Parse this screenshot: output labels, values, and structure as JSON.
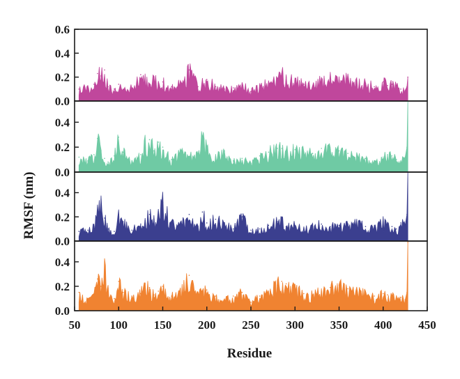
{
  "chart_data": {
    "type": "line",
    "style": "stacked-panels-filled-spikes",
    "xlabel": "Residue",
    "ylabel": "RMSF (nm)",
    "xlim": [
      50,
      450
    ],
    "x_ticks": [
      "50",
      "100",
      "150",
      "200",
      "250",
      "300",
      "350",
      "400",
      "450"
    ],
    "x_tick_values": [
      50,
      100,
      150,
      200,
      250,
      300,
      350,
      400,
      450
    ],
    "x_range_of_data": [
      55,
      428
    ],
    "grid": false,
    "legend": "none",
    "panels": [
      {
        "color": "#c0479c",
        "ylim": [
          0,
          0.6
        ],
        "y_ticks": [
          "0.0",
          "0.2",
          "0.4",
          "0.6"
        ],
        "y_tick_values": [
          0,
          0.2,
          0.4,
          0.6
        ],
        "x": [
          55,
          65,
          72,
          76,
          80,
          84,
          88,
          95,
          100,
          105,
          115,
          125,
          130,
          135,
          140,
          145,
          150,
          160,
          170,
          180,
          190,
          200,
          210,
          220,
          230,
          240,
          250,
          260,
          270,
          280,
          285,
          290,
          300,
          310,
          320,
          330,
          340,
          350,
          360,
          370,
          380,
          390,
          400,
          405,
          410,
          415,
          420,
          425,
          427,
          428
        ],
        "values": [
          0.1,
          0.12,
          0.14,
          0.23,
          0.21,
          0.26,
          0.12,
          0.1,
          0.14,
          0.09,
          0.11,
          0.22,
          0.18,
          0.13,
          0.2,
          0.15,
          0.16,
          0.12,
          0.15,
          0.26,
          0.12,
          0.18,
          0.12,
          0.1,
          0.11,
          0.14,
          0.08,
          0.13,
          0.15,
          0.18,
          0.23,
          0.2,
          0.17,
          0.14,
          0.12,
          0.18,
          0.19,
          0.17,
          0.2,
          0.16,
          0.15,
          0.12,
          0.16,
          0.13,
          0.14,
          0.12,
          0.1,
          0.09,
          0.12,
          0.2
        ]
      },
      {
        "color": "#6fcaa4",
        "ylim": [
          0,
          0.57
        ],
        "y_ticks": [
          "0.0",
          "0.2",
          "0.4"
        ],
        "y_tick_values": [
          0,
          0.2,
          0.4
        ],
        "x": [
          55,
          65,
          72,
          76,
          80,
          84,
          88,
          95,
          100,
          105,
          115,
          125,
          130,
          135,
          140,
          145,
          150,
          160,
          170,
          180,
          190,
          195,
          200,
          210,
          220,
          230,
          240,
          250,
          260,
          270,
          280,
          285,
          290,
          300,
          310,
          320,
          330,
          340,
          350,
          360,
          370,
          380,
          390,
          400,
          405,
          410,
          415,
          420,
          425,
          427,
          428
        ],
        "values": [
          0.12,
          0.09,
          0.14,
          0.27,
          0.17,
          0.11,
          0.08,
          0.13,
          0.28,
          0.16,
          0.08,
          0.14,
          0.25,
          0.26,
          0.17,
          0.24,
          0.2,
          0.1,
          0.16,
          0.12,
          0.15,
          0.29,
          0.18,
          0.12,
          0.17,
          0.09,
          0.11,
          0.07,
          0.13,
          0.16,
          0.19,
          0.19,
          0.17,
          0.18,
          0.16,
          0.15,
          0.19,
          0.18,
          0.17,
          0.15,
          0.13,
          0.11,
          0.09,
          0.12,
          0.14,
          0.13,
          0.1,
          0.08,
          0.12,
          0.2,
          0.58
        ]
      },
      {
        "color": "#3b3f8f",
        "ylim": [
          0,
          0.57
        ],
        "y_ticks": [
          "0.0",
          "0.2",
          "0.4"
        ],
        "y_tick_values": [
          0,
          0.2,
          0.4
        ],
        "x": [
          55,
          65,
          72,
          76,
          80,
          84,
          88,
          95,
          100,
          105,
          115,
          125,
          130,
          135,
          140,
          145,
          150,
          160,
          170,
          180,
          190,
          195,
          200,
          210,
          220,
          230,
          240,
          250,
          260,
          270,
          280,
          285,
          290,
          300,
          310,
          320,
          330,
          340,
          350,
          360,
          370,
          380,
          390,
          400,
          405,
          410,
          415,
          420,
          425,
          427,
          428
        ],
        "values": [
          0.08,
          0.09,
          0.12,
          0.24,
          0.3,
          0.19,
          0.1,
          0.08,
          0.22,
          0.16,
          0.09,
          0.14,
          0.17,
          0.22,
          0.18,
          0.22,
          0.32,
          0.15,
          0.13,
          0.22,
          0.12,
          0.24,
          0.15,
          0.18,
          0.15,
          0.1,
          0.2,
          0.09,
          0.1,
          0.13,
          0.16,
          0.2,
          0.12,
          0.13,
          0.1,
          0.12,
          0.14,
          0.12,
          0.13,
          0.14,
          0.15,
          0.12,
          0.11,
          0.16,
          0.13,
          0.12,
          0.1,
          0.15,
          0.13,
          0.22,
          0.57
        ]
      },
      {
        "color": "#f08331",
        "ylim": [
          0,
          0.57
        ],
        "y_ticks": [
          "0.0",
          "0.2",
          "0.4"
        ],
        "y_tick_values": [
          0,
          0.2,
          0.4
        ],
        "x": [
          55,
          65,
          72,
          76,
          80,
          84,
          88,
          95,
          100,
          105,
          115,
          125,
          130,
          135,
          140,
          145,
          150,
          160,
          170,
          180,
          190,
          200,
          210,
          220,
          230,
          240,
          250,
          260,
          270,
          280,
          285,
          290,
          300,
          310,
          320,
          330,
          340,
          350,
          360,
          370,
          380,
          390,
          400,
          405,
          410,
          415,
          420,
          425,
          427,
          428
        ],
        "values": [
          0.15,
          0.08,
          0.14,
          0.26,
          0.2,
          0.34,
          0.18,
          0.1,
          0.24,
          0.15,
          0.12,
          0.14,
          0.22,
          0.19,
          0.13,
          0.16,
          0.2,
          0.12,
          0.15,
          0.29,
          0.13,
          0.17,
          0.12,
          0.09,
          0.12,
          0.15,
          0.07,
          0.12,
          0.16,
          0.21,
          0.24,
          0.22,
          0.18,
          0.14,
          0.13,
          0.16,
          0.19,
          0.21,
          0.18,
          0.16,
          0.14,
          0.12,
          0.14,
          0.13,
          0.12,
          0.1,
          0.11,
          0.09,
          0.15,
          0.56
        ]
      }
    ]
  }
}
